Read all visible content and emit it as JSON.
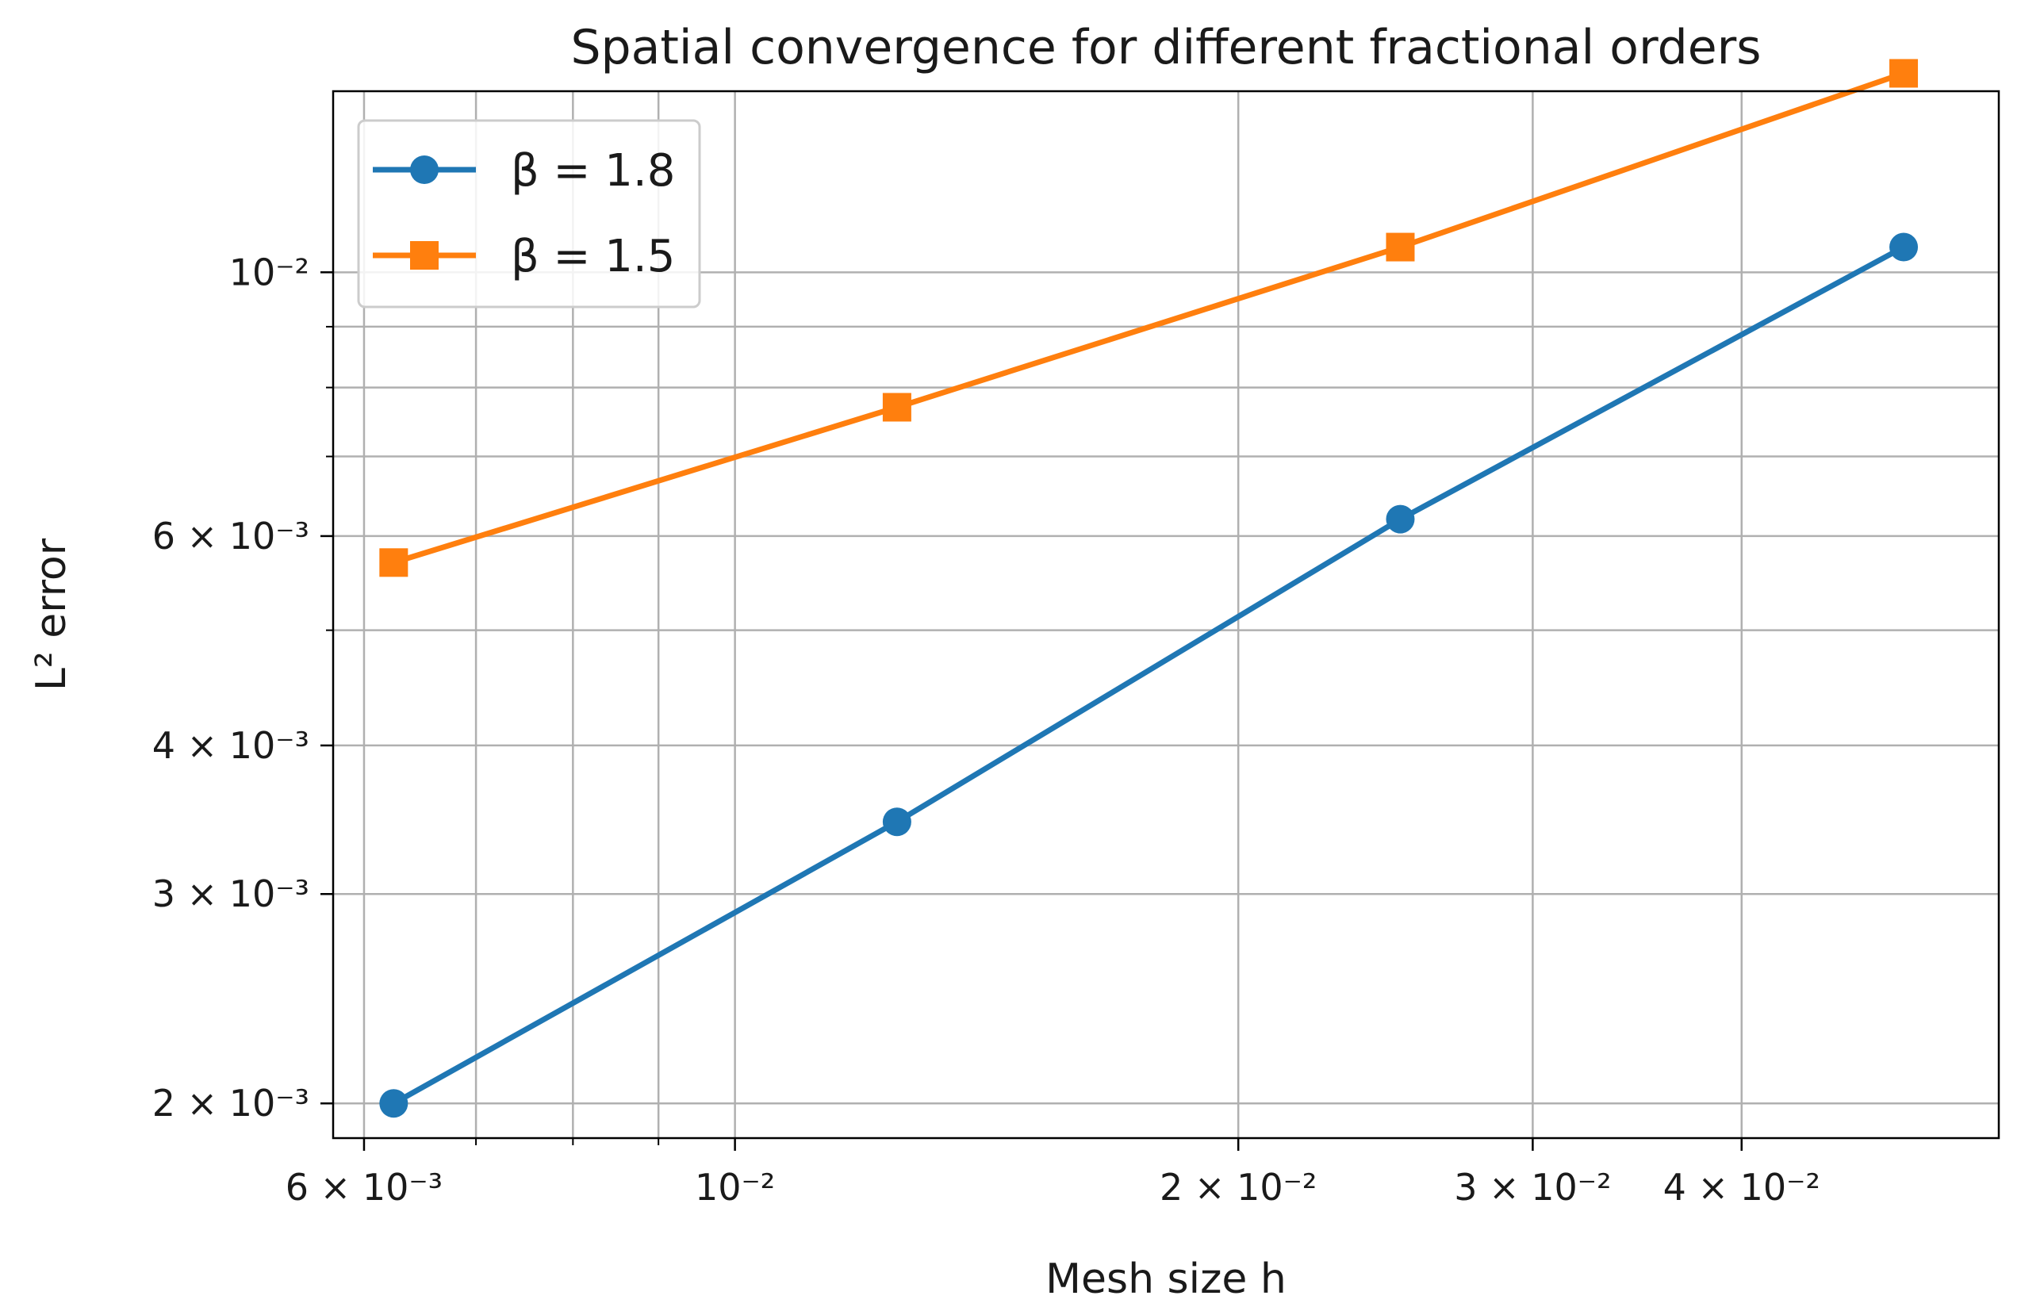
{
  "chart_data": {
    "type": "line",
    "title": "Spatial convergence for different fractional orders",
    "xlabel": "Mesh size h",
    "ylabel": "L² error",
    "xscale": "log",
    "yscale": "log",
    "xlim": [
      0.00575,
      0.057
    ],
    "ylim": [
      0.00187,
      0.0142
    ],
    "grid": true,
    "legend_position": "upper-left",
    "x": [
      0.00625,
      0.0125,
      0.025,
      0.05
    ],
    "series": [
      {
        "name": "β = 1.8",
        "color": "#1f77b4",
        "marker": "circle",
        "values": [
          0.002,
          0.00345,
          0.0062,
          0.0105
        ]
      },
      {
        "name": "β = 1.5",
        "color": "#ff7f0e",
        "marker": "square",
        "values": [
          0.0057,
          0.0077,
          0.0105,
          0.0147
        ]
      }
    ],
    "x_ticks": [
      {
        "value": 0.006,
        "label": "6 × 10⁻³"
      },
      {
        "value": 0.01,
        "label": "10⁻²"
      },
      {
        "value": 0.02,
        "label": "2 × 10⁻²"
      },
      {
        "value": 0.03,
        "label": "3 × 10⁻²"
      },
      {
        "value": 0.04,
        "label": "4 × 10⁻²"
      }
    ],
    "x_minor_ticks": [
      0.007,
      0.008,
      0.009
    ],
    "y_ticks": [
      {
        "value": 0.002,
        "label": "2 × 10⁻³"
      },
      {
        "value": 0.003,
        "label": "3 × 10⁻³"
      },
      {
        "value": 0.004,
        "label": "4 × 10⁻³"
      },
      {
        "value": 0.006,
        "label": "6 × 10⁻³"
      },
      {
        "value": 0.01,
        "label": "10⁻²"
      }
    ],
    "y_minor_ticks": [
      0.005,
      0.007,
      0.008,
      0.009
    ]
  }
}
